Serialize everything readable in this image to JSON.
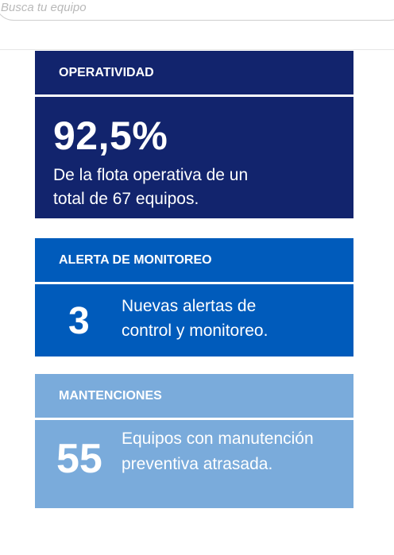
{
  "search": {
    "placeholder": "Busca tu equipo"
  },
  "cards": [
    {
      "header": "OPERATIVIDAD",
      "value": "92,5%",
      "description": "De la flota operativa de un total de 67 equipos.",
      "color": "#12246d"
    },
    {
      "header": "ALERTA DE MONITOREO",
      "value": "3",
      "description": "Nuevas alertas de control y monitoreo.",
      "color": "#005bbb"
    },
    {
      "header": "MANTENCIONES",
      "value": "55",
      "description": "Equipos con manutención preventiva atrasada.",
      "color": "#7aabdb"
    }
  ]
}
